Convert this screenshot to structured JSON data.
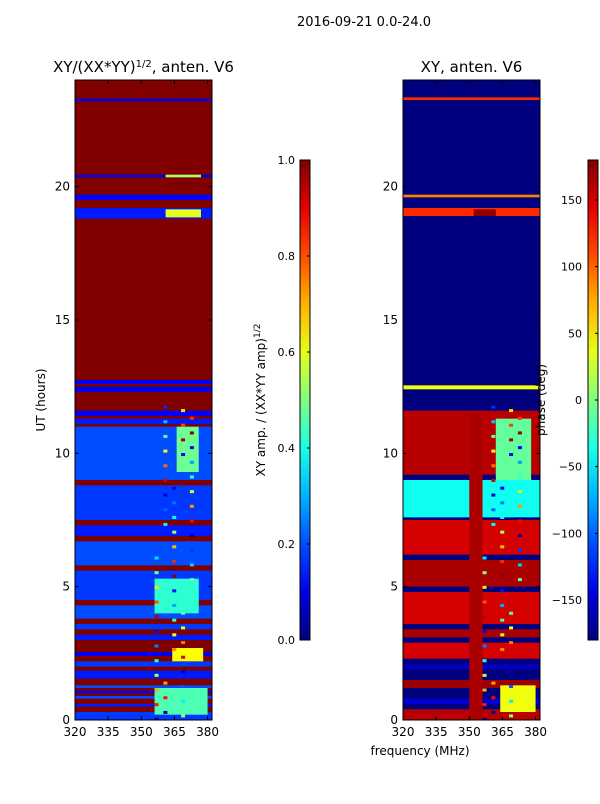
{
  "figure_title": "2016-09-21 0.0-24.0",
  "chart_data": [
    {
      "type": "heatmap",
      "title_prefix": "XY/(XX*YY)",
      "title_exp": "1/2",
      "title_suffix": ", anten. V6",
      "xlabel": "",
      "ylabel": "UT (hours)",
      "x_ticks": [
        320,
        335,
        350,
        365,
        380
      ],
      "xlim": [
        320,
        382
      ],
      "y_ticks": [
        0,
        5,
        10,
        15,
        20
      ],
      "ylim": [
        0,
        24
      ],
      "background": "#800000",
      "colorbar": {
        "label_prefix": "XY amp. / (XX*YY amp)",
        "label_exp": "1/2",
        "range": [
          0.0,
          1.0
        ],
        "ticks": [
          "0.0",
          "0.2",
          "0.4",
          "0.6",
          "0.8",
          "1.0"
        ]
      },
      "bands": [
        {
          "y0": 0.0,
          "y1": 0.3,
          "value": 0.18
        },
        {
          "y0": 0.5,
          "y1": 0.6,
          "value": 0.15
        },
        {
          "y0": 0.8,
          "y1": 0.9,
          "value": 0.2
        },
        {
          "y0": 1.0,
          "y1": 1.1,
          "value": 0.12
        },
        {
          "y0": 1.2,
          "y1": 1.3,
          "value": 0.2
        },
        {
          "y0": 1.55,
          "y1": 1.85,
          "value": 0.15
        },
        {
          "y0": 2.0,
          "y1": 2.2,
          "value": 0.18
        },
        {
          "y0": 2.4,
          "y1": 2.55,
          "value": 0.12
        },
        {
          "y0": 3.0,
          "y1": 3.2,
          "value": 0.15
        },
        {
          "y0": 3.4,
          "y1": 3.6,
          "value": 0.18
        },
        {
          "y0": 3.8,
          "y1": 4.3,
          "value": 0.2
        },
        {
          "y0": 4.5,
          "y1": 5.6,
          "value": 0.18
        },
        {
          "y0": 5.8,
          "y1": 6.7,
          "value": 0.2
        },
        {
          "y0": 6.9,
          "y1": 7.3,
          "value": 0.15
        },
        {
          "y0": 7.5,
          "y1": 8.8,
          "value": 0.18
        },
        {
          "y0": 9.0,
          "y1": 11.0,
          "value": 0.2
        },
        {
          "y0": 11.1,
          "y1": 11.3,
          "value": 0.15
        },
        {
          "y0": 11.4,
          "y1": 11.6,
          "value": 0.12
        },
        {
          "y0": 12.3,
          "y1": 12.5,
          "value": 0.1
        },
        {
          "y0": 12.6,
          "y1": 12.75,
          "value": 0.12
        },
        {
          "y0": 18.8,
          "y1": 19.2,
          "value": 0.15
        },
        {
          "y0": 19.5,
          "y1": 19.7,
          "value": 0.12
        },
        {
          "y0": 20.35,
          "y1": 20.45,
          "value": 0.1
        },
        {
          "y0": 23.2,
          "y1": 23.3,
          "value": 0.1
        }
      ],
      "hot_regions": [
        {
          "x0": 356,
          "x1": 380,
          "y0": 0.2,
          "y1": 1.2,
          "value": 0.45
        },
        {
          "x0": 364,
          "x1": 378,
          "y0": 2.2,
          "y1": 2.7,
          "value": 0.62
        },
        {
          "x0": 356,
          "x1": 376,
          "y0": 4.0,
          "y1": 5.3,
          "value": 0.42
        },
        {
          "x0": 366,
          "x1": 376,
          "y0": 9.3,
          "y1": 11.0,
          "value": 0.48
        },
        {
          "x0": 361,
          "x1": 377,
          "y0": 18.85,
          "y1": 19.15,
          "value": 0.6
        },
        {
          "x0": 361,
          "x1": 377,
          "y0": 20.35,
          "y1": 20.45,
          "value": 0.55
        }
      ]
    },
    {
      "type": "heatmap",
      "title_prefix": "XY, anten. V6",
      "title_exp": "",
      "title_suffix": "",
      "xlabel": "frequency (MHz)",
      "ylabel": "",
      "x_ticks": [
        320,
        335,
        350,
        365,
        380
      ],
      "xlim": [
        320,
        382
      ],
      "y_ticks": [
        0,
        5,
        10,
        15,
        20
      ],
      "ylim": [
        0,
        24
      ],
      "background": "#00007f",
      "colorbar": {
        "label_prefix": "phase (deg)",
        "label_exp": "",
        "range": [
          -180,
          180
        ],
        "ticks": [
          "−150",
          "−100",
          "−50",
          "0",
          "50",
          "100",
          "150"
        ]
      },
      "bands": [
        {
          "y0": 0.0,
          "y1": 0.4,
          "value": 160
        },
        {
          "y0": 0.6,
          "y1": 0.8,
          "value": -150
        },
        {
          "y0": 1.2,
          "y1": 1.5,
          "value": 170
        },
        {
          "y0": 1.9,
          "y1": 2.1,
          "value": -160
        },
        {
          "y0": 2.3,
          "y1": 2.9,
          "value": 150
        },
        {
          "y0": 3.1,
          "y1": 3.4,
          "value": 165
        },
        {
          "y0": 3.6,
          "y1": 4.8,
          "value": 150
        },
        {
          "y0": 5.0,
          "y1": 6.0,
          "value": 165
        },
        {
          "y0": 6.2,
          "y1": 7.5,
          "value": 150
        },
        {
          "y0": 7.6,
          "y1": 9.0,
          "value": -40
        },
        {
          "y0": 9.2,
          "y1": 11.6,
          "value": 160
        },
        {
          "y0": 12.4,
          "y1": 12.55,
          "value": 40
        },
        {
          "y0": 18.9,
          "y1": 19.2,
          "value": 120
        },
        {
          "y0": 19.6,
          "y1": 19.7,
          "value": 90
        },
        {
          "y0": 23.25,
          "y1": 23.35,
          "value": 120
        }
      ],
      "hot_regions": [
        {
          "x0": 350,
          "x1": 356,
          "y0": 0.0,
          "y1": 11.5,
          "value": 165
        },
        {
          "x0": 362,
          "x1": 378,
          "y0": 9.0,
          "y1": 11.3,
          "value": -10
        },
        {
          "x0": 352,
          "x1": 362,
          "y0": 18.9,
          "y1": 19.15,
          "value": 175
        },
        {
          "x0": 364,
          "x1": 380,
          "y0": 0.3,
          "y1": 1.3,
          "value": 40
        }
      ]
    }
  ]
}
